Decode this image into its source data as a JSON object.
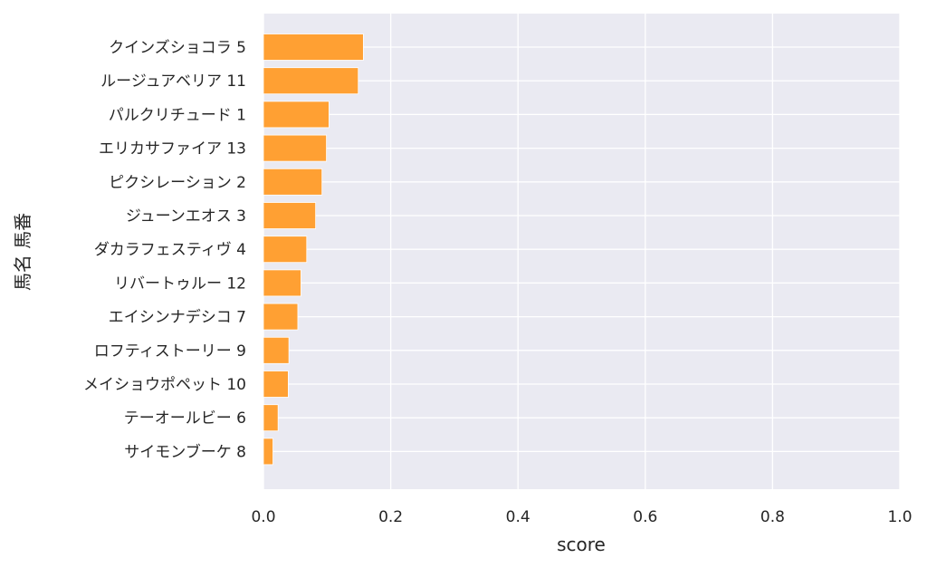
{
  "chart_data": {
    "type": "bar",
    "orientation": "horizontal",
    "title": "",
    "xlabel": "score",
    "ylabel": "馬名 馬番",
    "xlim": [
      0,
      1
    ],
    "xticks": [
      "0.0",
      "0.2",
      "0.4",
      "0.6",
      "0.8",
      "1.0"
    ],
    "grid": true,
    "legend": "none",
    "bar_color": "#ffa033",
    "background_color": "#eaeaf2",
    "categories": [
      "クインズショコラ 5",
      "ルージュアベリア 11",
      "パルクリチュード 1",
      "エリカサファイア 13",
      "ピクシレーション 2",
      "ジューンエオス 3",
      "ダカラフェスティヴ 4",
      "リバートゥルー 12",
      "エイシンナデシコ 7",
      "ロフティストーリー 9",
      "メイショウポペット 10",
      "テーオールビー 6",
      "サイモンブーケ 8"
    ],
    "values": [
      0.157,
      0.149,
      0.103,
      0.099,
      0.092,
      0.082,
      0.068,
      0.059,
      0.054,
      0.04,
      0.039,
      0.023,
      0.015
    ]
  }
}
